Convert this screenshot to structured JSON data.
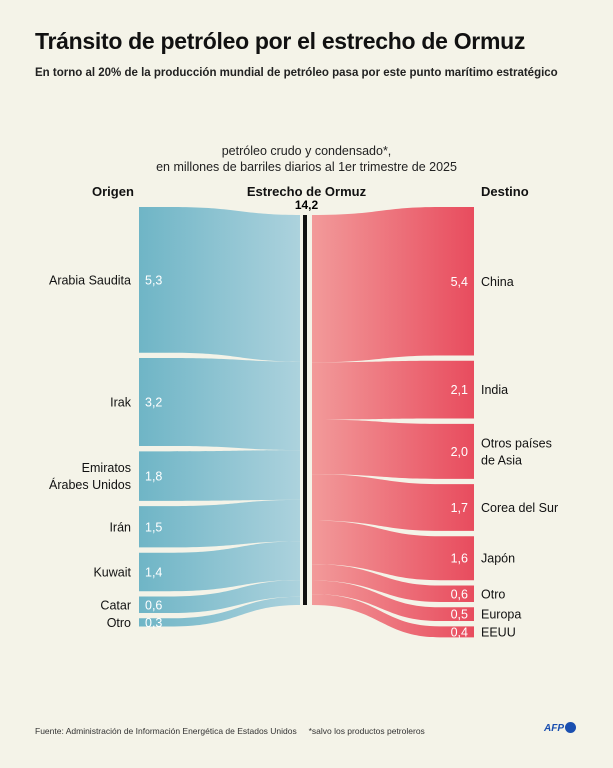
{
  "title": "Tránsito de petróleo por el estrecho de Ormuz",
  "subtitle": "En torno al 20% de la producción mundial de petróleo pasa por este punto marítimo estratégico",
  "note_line1": "petróleo crudo y condensado*,",
  "note_line2": "en millones de barriles diarios al 1er trimestre de 2025",
  "footer": "Fuente: Administración de Información Energética de Estados Unidos     *salvo los productos petroleros",
  "logo": "AFP",
  "chart_data": {
    "type": "sankey",
    "origin_header": "Origen",
    "center_header": "Estrecho de Ormuz",
    "destination_header": "Destino",
    "center_total": "14,2",
    "total_value": 14.2,
    "colors": {
      "origin": "#6fb5c6",
      "origin_light": "#acd2dd",
      "destination": "#e84c5e",
      "destination_light": "#f29a9a"
    },
    "origins": [
      {
        "name": [
          "Arabia Saudita"
        ],
        "label": "5,3",
        "value": 5.3
      },
      {
        "name": [
          "Irak"
        ],
        "label": "3,2",
        "value": 3.2
      },
      {
        "name": [
          "Emiratos",
          "Árabes Unidos"
        ],
        "label": "1,8",
        "value": 1.8
      },
      {
        "name": [
          "Irán"
        ],
        "label": "1,5",
        "value": 1.5
      },
      {
        "name": [
          "Kuwait"
        ],
        "label": "1,4",
        "value": 1.4
      },
      {
        "name": [
          "Catar"
        ],
        "label": "0,6",
        "value": 0.6
      },
      {
        "name": [
          "Otro"
        ],
        "label": "0,3",
        "value": 0.3
      }
    ],
    "destinations": [
      {
        "name": [
          "China"
        ],
        "label": "5,4",
        "value": 5.4
      },
      {
        "name": [
          "India"
        ],
        "label": "2,1",
        "value": 2.1
      },
      {
        "name": [
          "Otros países",
          "de Asia"
        ],
        "label": "2,0",
        "value": 2.0
      },
      {
        "name": [
          "Corea del Sur"
        ],
        "label": "1,7",
        "value": 1.7
      },
      {
        "name": [
          "Japón"
        ],
        "label": "1,6",
        "value": 1.6
      },
      {
        "name": [
          "Otro"
        ],
        "label": "0,6",
        "value": 0.6
      },
      {
        "name": [
          "Europa"
        ],
        "label": "0,5",
        "value": 0.5
      },
      {
        "name": [
          "EEUU"
        ],
        "label": "0,4",
        "value": 0.4
      }
    ]
  }
}
